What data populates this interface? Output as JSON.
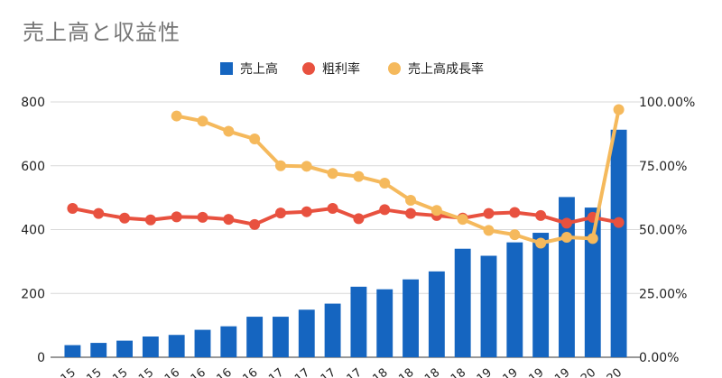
{
  "chart_data": {
    "type": "bar+line",
    "title": "売上高と収益性",
    "legend_position": "top",
    "legend": [
      {
        "name": "売上高",
        "marker": "square",
        "color": "#1565c0"
      },
      {
        "name": "粗利率",
        "marker": "circle",
        "color": "#e8513f"
      },
      {
        "name": "売上高成長率",
        "marker": "circle",
        "color": "#f5b95c"
      }
    ],
    "x_tick_labels": [
      "15",
      "15",
      "15",
      "15",
      "16",
      "16",
      "16",
      "16",
      "17",
      "17",
      "17",
      "17",
      "18",
      "18",
      "18",
      "18",
      "19",
      "19",
      "19",
      "19",
      "20",
      "20"
    ],
    "y_left": {
      "ticks": [
        "0",
        "200",
        "400",
        "600",
        "800"
      ],
      "range": [
        0,
        800
      ]
    },
    "y_right": {
      "ticks": [
        "0.00%",
        "25.00%",
        "50.00%",
        "75.00%",
        "100.00%"
      ],
      "range": [
        0,
        1.0
      ]
    },
    "grid": true,
    "series": [
      {
        "name": "売上高",
        "type": "bar",
        "axis": "left",
        "color": "#1565c0",
        "values": [
          38,
          45,
          52,
          65,
          70,
          86,
          97,
          127,
          127,
          149,
          168,
          221,
          213,
          244,
          269,
          340,
          318,
          360,
          390,
          502,
          469,
          713
        ]
      },
      {
        "name": "粗利率",
        "type": "line",
        "axis": "right",
        "color": "#e8513f",
        "values": [
          0.583,
          0.563,
          0.545,
          0.538,
          0.55,
          0.548,
          0.54,
          0.52,
          0.565,
          0.57,
          0.583,
          0.543,
          0.578,
          0.563,
          0.555,
          0.545,
          0.563,
          0.567,
          0.555,
          0.525,
          0.548,
          0.528
        ]
      },
      {
        "name": "売上高成長率",
        "type": "line",
        "axis": "right",
        "color": "#f5b95c",
        "values": [
          null,
          null,
          null,
          null,
          0.945,
          0.925,
          0.885,
          0.855,
          0.75,
          0.748,
          0.72,
          0.708,
          0.682,
          0.615,
          0.575,
          0.54,
          0.497,
          0.48,
          0.447,
          0.47,
          0.465,
          0.97
        ]
      }
    ]
  }
}
